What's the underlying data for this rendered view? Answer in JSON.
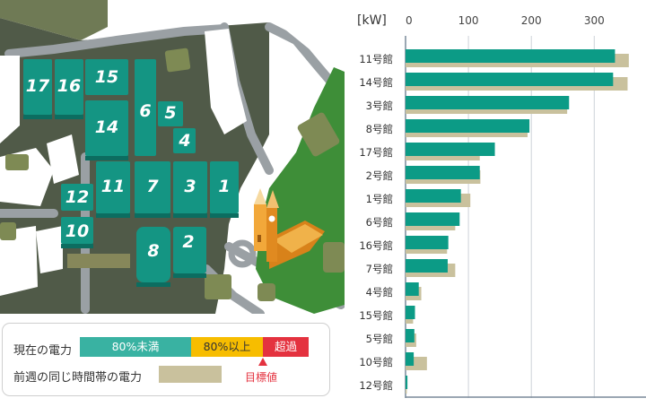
{
  "map": {
    "buildings": [
      "17",
      "16",
      "15",
      "14",
      "6",
      "5",
      "4",
      "7",
      "3",
      "1",
      "12",
      "11",
      "10",
      "8",
      "2"
    ]
  },
  "legend": {
    "current_label": "現在の電力",
    "under80": "80%未満",
    "over80": "80%以上",
    "exceed": "超過",
    "lastweek_label": "前週の同じ時間帯の電力",
    "target_label": "目標値"
  },
  "colors": {
    "current": "#0c9b86",
    "lastweek": "#c9c19d",
    "under80_box": "#39b2a2",
    "over80_box": "#f7bd00",
    "exceed_box": "#e4323f",
    "target_mark": "#e4323f",
    "map_ground": "#505a48",
    "map_green": "#3e8e38",
    "building": "#149583"
  },
  "chart_data": {
    "type": "bar",
    "orientation": "horizontal",
    "unit": "[kW]",
    "xlim": [
      0,
      380
    ],
    "xticks": [
      0,
      100,
      200,
      300
    ],
    "grid": true,
    "categories": [
      "11号館",
      "14号館",
      "3号館",
      "8号館",
      "17号館",
      "2号館",
      "1号館",
      "6号館",
      "16号館",
      "7号館",
      "4号館",
      "15号館",
      "5号館",
      "10号館",
      "12号館"
    ],
    "series": [
      {
        "values": [
          333,
          330,
          260,
          197,
          142,
          118,
          88,
          86,
          68,
          67,
          21,
          15,
          14,
          13,
          3
        ]
      },
      {
        "values": [
          355,
          353,
          257,
          194,
          118,
          119,
          103,
          79,
          66,
          79,
          25,
          12,
          17,
          34,
          2
        ]
      }
    ]
  }
}
